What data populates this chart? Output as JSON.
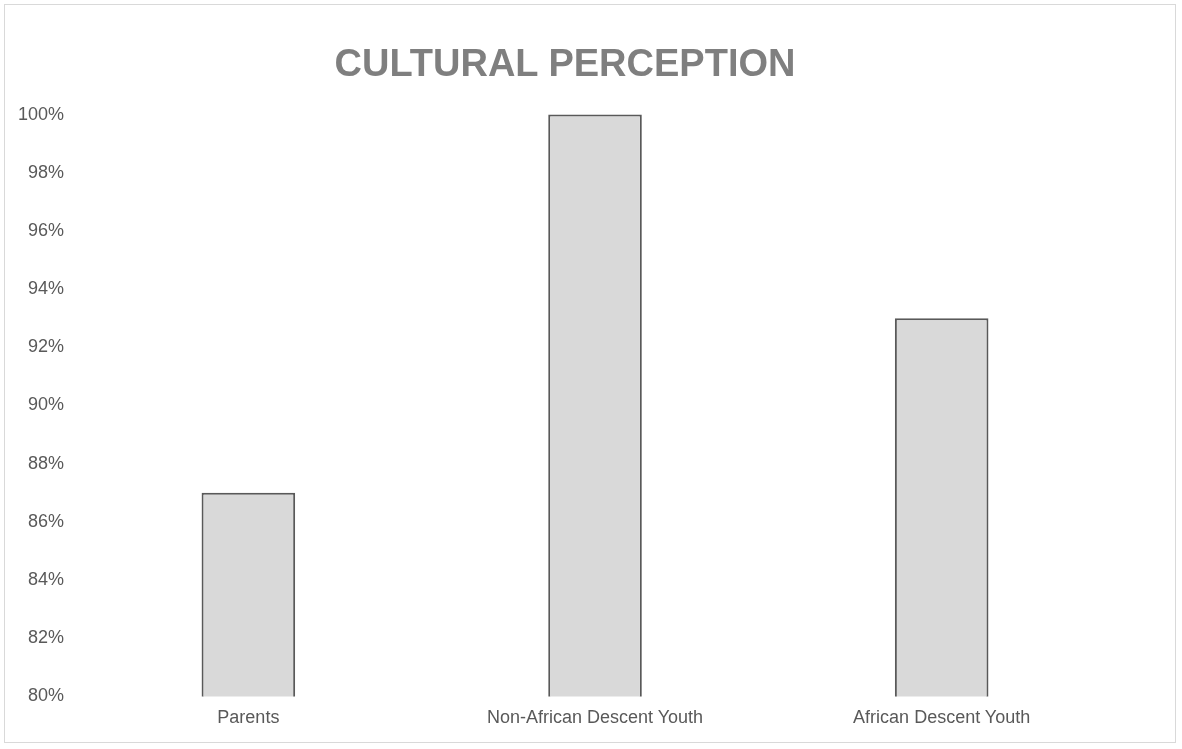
{
  "chart_data": {
    "type": "bar",
    "title": "CULTURAL PERCEPTION",
    "categories": [
      "Parents",
      "Non-African Descent Youth",
      "African Descent Youth"
    ],
    "values": [
      87,
      100,
      93
    ],
    "color": "#d9d9d9",
    "ylim": [
      80,
      100
    ],
    "yticks": [
      {
        "value": 80,
        "label": "80%"
      },
      {
        "value": 82,
        "label": "82%"
      },
      {
        "value": 84,
        "label": "84%"
      },
      {
        "value": 86,
        "label": "86%"
      },
      {
        "value": 88,
        "label": "88%"
      },
      {
        "value": 90,
        "label": "90%"
      },
      {
        "value": 92,
        "label": "92%"
      },
      {
        "value": 94,
        "label": "94%"
      },
      {
        "value": 96,
        "label": "96%"
      },
      {
        "value": 98,
        "label": "98%"
      },
      {
        "value": 100,
        "label": "100%"
      }
    ],
    "grid": false,
    "legend": false
  }
}
